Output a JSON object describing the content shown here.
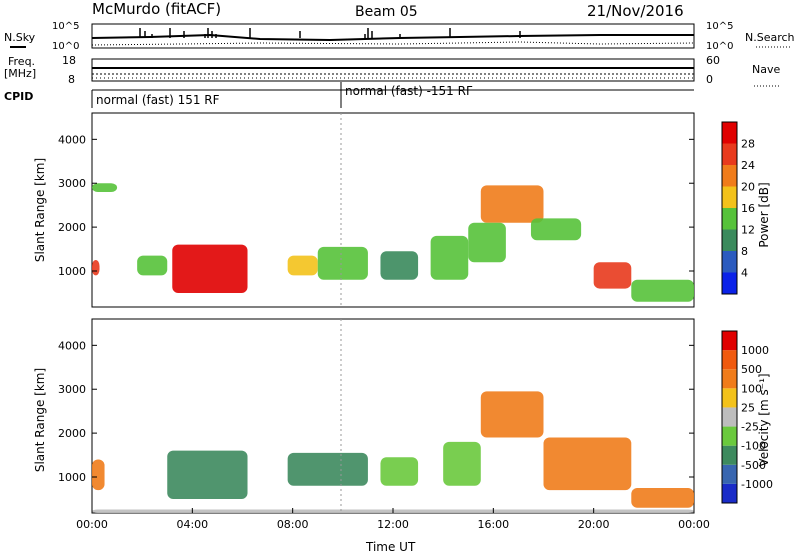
{
  "header": {
    "title": "McMurdo (fitACF)",
    "beam": "Beam 05",
    "date": "21/Nov/2016"
  },
  "summary": {
    "nsky_label": "N.Sky",
    "nsky_ticks": [
      "10^5",
      "10^0"
    ],
    "nsearch_label": "N.Search",
    "nsearch_ticks": [
      "10^5",
      "10^0"
    ],
    "freq_label": "Freq.",
    "freq_unit": "[MHz]",
    "freq_ticks": [
      "18",
      "8"
    ],
    "nave_label": "Nave",
    "nave_ticks": [
      "60",
      "0"
    ],
    "cpid_label": "CPID",
    "cpid_segments": [
      {
        "label": "normal (fast) 151 RF",
        "start_h": 0,
        "end_h": 10
      },
      {
        "label": "normal (fast) -151 RF",
        "start_h": 10,
        "end_h": 24
      }
    ]
  },
  "chart_data": [
    {
      "type": "heatmap",
      "name": "power",
      "ylabel": "Slant Range [km]",
      "yticks": [
        1000,
        2000,
        3000,
        4000
      ],
      "ylim": [
        180,
        4600
      ],
      "xlim": [
        0,
        24
      ],
      "colorbar": {
        "label": "Power [dB]",
        "ticks": [
          "4",
          "8",
          "12",
          "16",
          "20",
          "24",
          "28"
        ],
        "colors": [
          "#0b22e8",
          "#2b5bbf",
          "#3a8a5c",
          "#56c23a",
          "#f3c21b",
          "#f07c1b",
          "#e83a1d",
          "#e00000"
        ]
      },
      "regions": [
        {
          "t0": 0.0,
          "t1": 0.3,
          "r0": 900,
          "r1": 1250,
          "level": 6
        },
        {
          "t0": 3.2,
          "t1": 6.2,
          "r0": 500,
          "r1": 1600,
          "level": 7
        },
        {
          "t0": 1.8,
          "t1": 3.0,
          "r0": 900,
          "r1": 1350,
          "level": 3
        },
        {
          "t0": 7.8,
          "t1": 9.0,
          "r0": 900,
          "r1": 1350,
          "level": 4
        },
        {
          "t0": 9.0,
          "t1": 11.0,
          "r0": 800,
          "r1": 1550,
          "level": 3
        },
        {
          "t0": 11.5,
          "t1": 13.0,
          "r0": 800,
          "r1": 1450,
          "level": 2
        },
        {
          "t0": 13.5,
          "t1": 15.0,
          "r0": 800,
          "r1": 1800,
          "level": 3
        },
        {
          "t0": 15.5,
          "t1": 18.0,
          "r0": 2100,
          "r1": 2950,
          "level": 5
        },
        {
          "t0": 15.0,
          "t1": 16.5,
          "r0": 1200,
          "r1": 2100,
          "level": 3
        },
        {
          "t0": 17.5,
          "t1": 19.5,
          "r0": 1700,
          "r1": 2200,
          "level": 3
        },
        {
          "t0": 20.0,
          "t1": 21.5,
          "r0": 600,
          "r1": 1200,
          "level": 6
        },
        {
          "t0": 21.5,
          "t1": 24.0,
          "r0": 300,
          "r1": 800,
          "level": 3
        },
        {
          "t0": 0.0,
          "t1": 1.0,
          "r0": 2800,
          "r1": 3000,
          "level": 3
        }
      ]
    },
    {
      "type": "heatmap",
      "name": "velocity",
      "ylabel": "Slant Range [km]",
      "yticks": [
        1000,
        2000,
        3000,
        4000
      ],
      "ylim": [
        180,
        4600
      ],
      "xlim": [
        0,
        24
      ],
      "xticks": [
        "00:00",
        "04:00",
        "08:00",
        "12:00",
        "16:00",
        "20:00",
        "00:00"
      ],
      "xlabel": "Time UT",
      "colorbar": {
        "label": "Velocity [m s⁻¹]",
        "ticks": [
          "1000",
          "500",
          "100",
          "25",
          "-25",
          "-100",
          "-500",
          "-1000"
        ],
        "colors": [
          "#1a2cc8",
          "#3866b0",
          "#3d8a5e",
          "#6ac93d",
          "#bdbdbd",
          "#f3c21b",
          "#f07c1b",
          "#f05a0f",
          "#e00000"
        ]
      },
      "regions": [
        {
          "t0": 3.0,
          "t1": 6.2,
          "r0": 500,
          "r1": 1600,
          "level": 2
        },
        {
          "t0": 7.8,
          "t1": 11.0,
          "r0": 800,
          "r1": 1550,
          "level": 2
        },
        {
          "t0": 11.5,
          "t1": 13.0,
          "r0": 800,
          "r1": 1450,
          "level": 3
        },
        {
          "t0": 14.0,
          "t1": 15.5,
          "r0": 800,
          "r1": 1800,
          "level": 3
        },
        {
          "t0": 15.5,
          "t1": 18.0,
          "r0": 1900,
          "r1": 2950,
          "level": 6
        },
        {
          "t0": 18.0,
          "t1": 21.5,
          "r0": 700,
          "r1": 1900,
          "level": 6
        },
        {
          "t0": 21.5,
          "t1": 24.0,
          "r0": 300,
          "r1": 750,
          "level": 6
        },
        {
          "t0": 0.0,
          "t1": 0.5,
          "r0": 700,
          "r1": 1400,
          "level": 6
        },
        {
          "t0": 0.0,
          "t1": 24.0,
          "r0": 180,
          "r1": 260,
          "level": 4
        }
      ]
    }
  ]
}
